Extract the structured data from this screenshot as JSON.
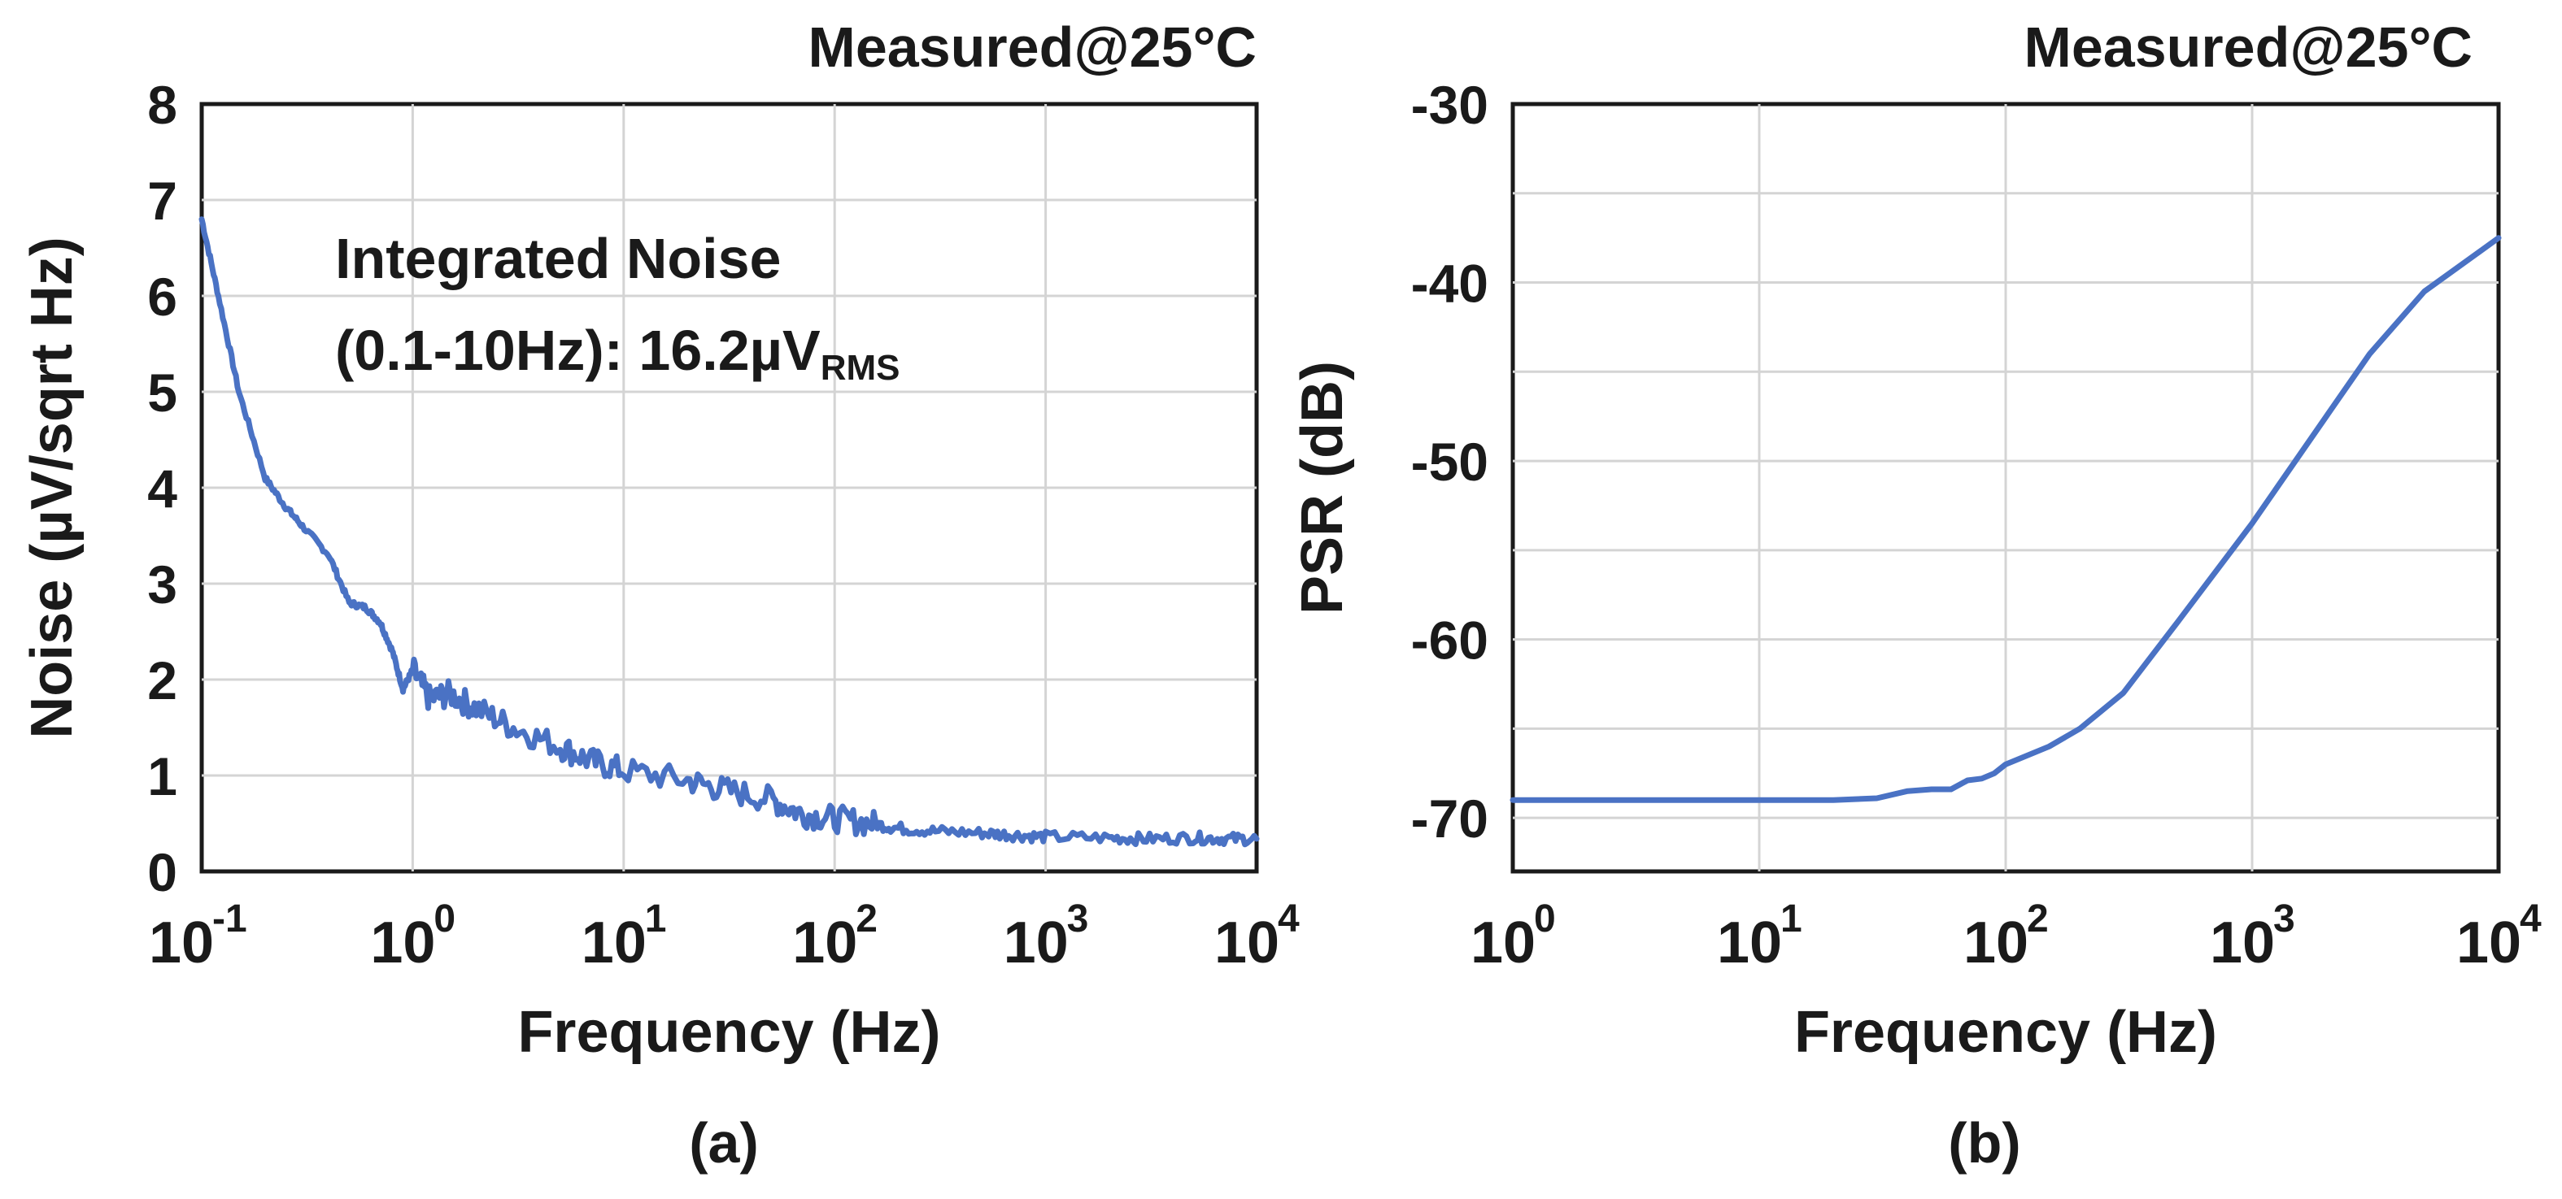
{
  "chart_data": [
    {
      "type": "line",
      "panel_label": "(a)",
      "annotation_top": "Measured@25°C",
      "annotation_inner_line1": "Integrated Noise",
      "annotation_inner_line2_main": "(0.1-10Hz): 16.2µV",
      "annotation_inner_line2_sub": "RMS",
      "xlabel": "Frequency (Hz)",
      "ylabel": "Noise (µV/sqrt Hz)",
      "x_scale": "log",
      "xlim": [
        0.1,
        10000
      ],
      "ylim": [
        0,
        8
      ],
      "x_ticks": [
        {
          "value": 0.1,
          "base": "10",
          "exp": "-1"
        },
        {
          "value": 1,
          "base": "10",
          "exp": "0"
        },
        {
          "value": 10,
          "base": "10",
          "exp": "1"
        },
        {
          "value": 100,
          "base": "10",
          "exp": "2"
        },
        {
          "value": 1000,
          "base": "10",
          "exp": "3"
        },
        {
          "value": 10000,
          "base": "10",
          "exp": "4"
        }
      ],
      "y_ticks": [
        "0",
        "1",
        "2",
        "3",
        "4",
        "5",
        "6",
        "7",
        "8"
      ],
      "grid": true,
      "line_color": "#4a72c4",
      "series": [
        {
          "x": [
            0.1,
            0.12,
            0.15,
            0.2,
            0.25,
            0.3,
            0.4,
            0.5,
            0.6,
            0.7,
            0.8,
            0.9,
            1,
            1.2,
            1.5,
            2,
            3,
            5,
            7,
            10,
            20,
            30,
            50,
            70,
            100,
            150,
            200,
            300,
            500,
            700,
            1000,
            2000,
            3000,
            5000,
            7000,
            10000
          ],
          "y": [
            6.8,
            6.0,
            5.0,
            4.1,
            3.8,
            3.6,
            3.3,
            2.8,
            2.75,
            2.6,
            2.3,
            1.9,
            2.1,
            1.8,
            1.85,
            1.7,
            1.5,
            1.3,
            1.15,
            1.05,
            0.95,
            0.85,
            0.75,
            0.6,
            0.55,
            0.5,
            0.45,
            0.42,
            0.4,
            0.38,
            0.36,
            0.35,
            0.34,
            0.35,
            0.34,
            0.34
          ]
        }
      ]
    },
    {
      "type": "line",
      "panel_label": "(b)",
      "annotation_top": "Measured@25°C",
      "xlabel": "Frequency (Hz)",
      "ylabel": "PSR (dB)",
      "x_scale": "log",
      "xlim": [
        1,
        10000
      ],
      "ylim": [
        -73,
        -30
      ],
      "x_ticks": [
        {
          "value": 1,
          "base": "10",
          "exp": "0"
        },
        {
          "value": 10,
          "base": "10",
          "exp": "1"
        },
        {
          "value": 100,
          "base": "10",
          "exp": "2"
        },
        {
          "value": 1000,
          "base": "10",
          "exp": "3"
        },
        {
          "value": 10000,
          "base": "10",
          "exp": "4"
        }
      ],
      "y_ticks": [
        "-30",
        "-40",
        "-50",
        "-60",
        "-70"
      ],
      "y_tick_values": [
        -30,
        -40,
        -50,
        -60,
        -70
      ],
      "y_grid_values": [
        -30,
        -35,
        -40,
        -45,
        -50,
        -55,
        -60,
        -65,
        -70
      ],
      "grid": true,
      "line_color": "#4a72c4",
      "series": [
        {
          "x": [
            1,
            5,
            10,
            20,
            30,
            40,
            50,
            60,
            70,
            80,
            90,
            100,
            150,
            200,
            300,
            500,
            1000,
            2000,
            3000,
            5000,
            10000
          ],
          "y": [
            -69,
            -69,
            -69,
            -69,
            -68.9,
            -68.5,
            -68.4,
            -68.4,
            -67.9,
            -67.8,
            -67.5,
            -67,
            -66,
            -65,
            -63,
            -59,
            -53.5,
            -47.5,
            -44,
            -40.5,
            -37.5
          ]
        }
      ]
    }
  ]
}
